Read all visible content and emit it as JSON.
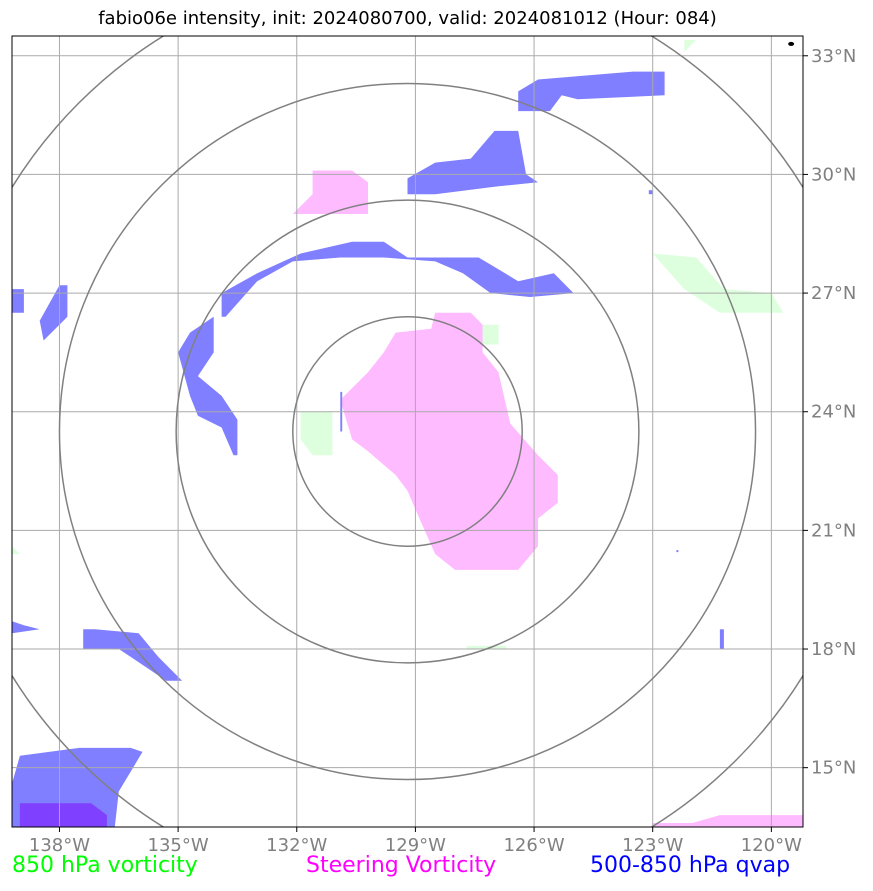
{
  "title": "fabio06e intensity, init: 2024080700, valid: 2024081012 (Hour: 084)",
  "map": {
    "lon_range": [
      -139.2,
      -119.2
    ],
    "lat_range": [
      13.5,
      33.5
    ],
    "lon_ticks": [
      -138,
      -135,
      -132,
      -129,
      -126,
      -123,
      -120
    ],
    "lat_ticks": [
      15,
      18,
      21,
      24,
      27,
      30,
      33
    ],
    "lon_tick_labels": [
      "138°W",
      "135°W",
      "132°W",
      "129°W",
      "126°W",
      "123°W",
      "120°W"
    ],
    "lat_tick_labels": [
      "15°N",
      "18°N",
      "21°N",
      "24°N",
      "27°N",
      "30°N",
      "33°N"
    ],
    "center": {
      "lon": -129.2,
      "lat": 23.5
    },
    "range_rings_deg": [
      2.9,
      5.85,
      8.8,
      11.75
    ],
    "colors": {
      "gridline": "#aaaaaa",
      "ring": "#808080",
      "vorticity": "#ddffdd",
      "steering": "#ffbbff",
      "qvap": "#7f7fff",
      "qvap_dark": "#8040ff"
    },
    "fields": {
      "vorticity": [
        [
          [
            -123.0,
            28.0
          ],
          [
            -121.9,
            27.9
          ],
          [
            -121.2,
            27.1
          ],
          [
            -120.0,
            27.0
          ],
          [
            -119.7,
            26.5
          ],
          [
            -121.3,
            26.5
          ],
          [
            -122.2,
            27.1
          ]
        ],
        [
          [
            -127.4,
            26.2
          ],
          [
            -126.9,
            26.2
          ],
          [
            -126.9,
            25.7
          ],
          [
            -127.4,
            25.7
          ]
        ],
        [
          [
            -131.9,
            24.0
          ],
          [
            -131.1,
            24.0
          ],
          [
            -131.1,
            22.9
          ],
          [
            -131.6,
            22.9
          ],
          [
            -131.9,
            23.3
          ]
        ],
        [
          [
            -127.7,
            18.0
          ],
          [
            -126.7,
            18.0
          ],
          [
            -126.7,
            18.08
          ],
          [
            -127.7,
            18.08
          ]
        ],
        [
          [
            -122.2,
            33.4
          ],
          [
            -121.9,
            33.4
          ],
          [
            -122.2,
            33.1
          ]
        ],
        [
          [
            -139.2,
            20.6
          ],
          [
            -139.0,
            20.4
          ],
          [
            -139.2,
            20.4
          ]
        ]
      ],
      "steering": [
        [
          [
            -128.5,
            26.5
          ],
          [
            -127.6,
            26.5
          ],
          [
            -127.3,
            26.2
          ],
          [
            -127.3,
            25.5
          ],
          [
            -126.9,
            25.0
          ],
          [
            -126.6,
            23.7
          ],
          [
            -125.9,
            22.9
          ],
          [
            -125.4,
            22.4
          ],
          [
            -125.4,
            21.7
          ],
          [
            -125.9,
            21.3
          ],
          [
            -125.9,
            20.6
          ],
          [
            -126.4,
            20.0
          ],
          [
            -128.0,
            20.0
          ],
          [
            -128.5,
            20.4
          ],
          [
            -128.9,
            21.3
          ],
          [
            -129.2,
            22.0
          ],
          [
            -129.5,
            22.4
          ],
          [
            -130.2,
            23.0
          ],
          [
            -130.6,
            23.3
          ],
          [
            -130.9,
            24.3
          ],
          [
            -130.2,
            25.0
          ],
          [
            -129.8,
            25.5
          ],
          [
            -129.5,
            26.0
          ],
          [
            -128.6,
            26.1
          ]
        ],
        [
          [
            -131.6,
            30.1
          ],
          [
            -130.6,
            30.1
          ],
          [
            -130.2,
            29.8
          ],
          [
            -130.2,
            29.0
          ],
          [
            -132.1,
            29.0
          ],
          [
            -131.6,
            29.5
          ]
        ],
        [
          [
            -121.3,
            13.8
          ],
          [
            -119.2,
            13.8
          ],
          [
            -119.2,
            13.2
          ],
          [
            -121.8,
            13.2
          ],
          [
            -122.0,
            13.6
          ]
        ],
        [
          [
            -123.0,
            13.6
          ],
          [
            -121.9,
            13.6
          ],
          [
            -121.9,
            13.45
          ],
          [
            -123.0,
            13.45
          ]
        ]
      ],
      "qvap": [
        [
          [
            -133.9,
            27.0
          ],
          [
            -133.0,
            27.5
          ],
          [
            -131.9,
            28.0
          ],
          [
            -130.6,
            28.3
          ],
          [
            -129.8,
            28.3
          ],
          [
            -129.2,
            27.9
          ],
          [
            -127.4,
            27.9
          ],
          [
            -126.4,
            27.3
          ],
          [
            -125.5,
            27.5
          ],
          [
            -125.0,
            27.0
          ],
          [
            -126.1,
            26.9
          ],
          [
            -127.1,
            27.0
          ],
          [
            -127.8,
            27.5
          ],
          [
            -128.5,
            27.8
          ],
          [
            -129.8,
            27.9
          ],
          [
            -130.9,
            27.9
          ],
          [
            -132.1,
            27.8
          ],
          [
            -133.0,
            27.3
          ],
          [
            -133.8,
            26.4
          ],
          [
            -133.9,
            26.4
          ]
        ],
        [
          [
            -128.5,
            30.3
          ],
          [
            -127.6,
            30.4
          ],
          [
            -127.0,
            31.1
          ],
          [
            -126.4,
            31.1
          ],
          [
            -126.2,
            30.0
          ],
          [
            -125.9,
            29.8
          ],
          [
            -126.9,
            29.7
          ],
          [
            -128.5,
            29.5
          ],
          [
            -129.2,
            29.5
          ],
          [
            -129.2,
            29.9
          ]
        ],
        [
          [
            -125.9,
            32.4
          ],
          [
            -123.5,
            32.6
          ],
          [
            -122.7,
            32.6
          ],
          [
            -122.7,
            32.0
          ],
          [
            -124.9,
            31.9
          ],
          [
            -125.3,
            32.0
          ],
          [
            -125.6,
            31.6
          ],
          [
            -126.4,
            31.6
          ],
          [
            -126.4,
            32.1
          ]
        ],
        [
          [
            -134.7,
            26.0
          ],
          [
            -134.1,
            26.4
          ],
          [
            -134.1,
            25.5
          ],
          [
            -134.5,
            24.9
          ],
          [
            -133.9,
            24.4
          ],
          [
            -133.5,
            23.8
          ],
          [
            -133.5,
            22.9
          ],
          [
            -133.6,
            22.9
          ],
          [
            -133.9,
            23.6
          ],
          [
            -134.5,
            23.9
          ],
          [
            -134.7,
            24.4
          ],
          [
            -135.0,
            25.5
          ]
        ],
        [
          [
            -138.0,
            27.2
          ],
          [
            -137.8,
            27.2
          ],
          [
            -137.8,
            26.4
          ],
          [
            -138.4,
            25.8
          ],
          [
            -138.5,
            26.3
          ]
        ],
        [
          [
            -139.2,
            27.1
          ],
          [
            -138.9,
            27.1
          ],
          [
            -138.9,
            26.5
          ],
          [
            -139.2,
            26.5
          ]
        ],
        [
          [
            -137.1,
            18.5
          ],
          [
            -136.0,
            18.4
          ],
          [
            -135.5,
            17.8
          ],
          [
            -134.9,
            17.2
          ],
          [
            -135.3,
            17.2
          ],
          [
            -136.2,
            17.8
          ],
          [
            -136.5,
            18.0
          ],
          [
            -137.4,
            18.0
          ],
          [
            -137.4,
            18.5
          ]
        ],
        [
          [
            -139.2,
            18.7
          ],
          [
            -138.9,
            18.6
          ],
          [
            -138.5,
            18.5
          ],
          [
            -139.2,
            18.4
          ]
        ],
        [
          [
            -139.0,
            15.3
          ],
          [
            -137.5,
            15.5
          ],
          [
            -136.2,
            15.5
          ],
          [
            -135.9,
            15.4
          ],
          [
            -136.2,
            14.9
          ],
          [
            -136.5,
            14.4
          ],
          [
            -136.6,
            13.5
          ],
          [
            -139.2,
            13.5
          ],
          [
            -139.2,
            14.6
          ]
        ],
        [
          [
            -130.9,
            24.5
          ],
          [
            -130.85,
            24.5
          ],
          [
            -130.85,
            23.5
          ],
          [
            -130.9,
            23.5
          ]
        ],
        [
          [
            -121.3,
            18.5
          ],
          [
            -121.2,
            18.5
          ],
          [
            -121.2,
            18.0
          ],
          [
            -121.3,
            18.0
          ]
        ],
        [
          [
            -123.1,
            29.6
          ],
          [
            -123.0,
            29.6
          ],
          [
            -123.0,
            29.5
          ],
          [
            -123.1,
            29.5
          ]
        ],
        [
          [
            -122.4,
            20.5
          ],
          [
            -122.35,
            20.5
          ],
          [
            -122.35,
            20.45
          ],
          [
            -122.4,
            20.45
          ]
        ]
      ],
      "qvap_dark": [
        [
          [
            -139.0,
            14.1
          ],
          [
            -137.2,
            14.1
          ],
          [
            -136.8,
            13.8
          ],
          [
            -136.8,
            13.5
          ],
          [
            -139.0,
            13.5
          ]
        ]
      ]
    },
    "dots": [
      {
        "lon": -119.5,
        "lat": 33.3,
        "color": "#000000"
      }
    ]
  },
  "legend": {
    "vorticity": {
      "label": "850 hPa vorticity",
      "color": "#00ff00"
    },
    "steering": {
      "label": "Steering Vorticity",
      "color": "#ff00ff"
    },
    "qvap": {
      "label": "500-850 hPa qvap",
      "color": "#0000ff"
    }
  }
}
